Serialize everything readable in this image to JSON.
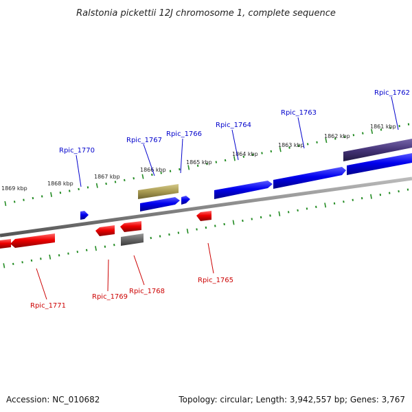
{
  "title": "Ralstonia pickettii 12J chromosome 1, complete sequence",
  "footer": {
    "accession": "Accession: NC_010682",
    "summary": "Topology: circular; Length: 3,942,557 bp; Genes: 3,767"
  },
  "kbp_labels": [
    "1869 kbp",
    "1868 kbp",
    "1867 kbp",
    "1866 kbp",
    "1865 kbp",
    "1864 kbp",
    "1863 kbp",
    "1862 kbp",
    "1861 kbp"
  ],
  "genes": [
    {
      "id": "Rpic_1762",
      "strand": "+",
      "color": "#0000ee"
    },
    {
      "id": "Rpic_1763",
      "strand": "+",
      "color": "#0000ee"
    },
    {
      "id": "Rpic_1764",
      "strand": "+",
      "color": "#0000ee"
    },
    {
      "id": "Rpic_1765",
      "strand": "-",
      "color": "#ee0000"
    },
    {
      "id": "Rpic_1766",
      "strand": "+",
      "color": "#0000ee"
    },
    {
      "id": "Rpic_1767",
      "strand": "+",
      "color": "#0000ee"
    },
    {
      "id": "Rpic_1768",
      "strand": "-",
      "color": "#666666"
    },
    {
      "id": "Rpic_1769",
      "strand": "-",
      "color": "#ee0000"
    },
    {
      "id": "Rpic_1770",
      "strand": "+",
      "color": "#0000ee"
    },
    {
      "id": "Rpic_1771",
      "strand": "-",
      "color": "#ee0000"
    }
  ],
  "colors": {
    "forward_cds": "#0000ee",
    "reverse_cds": "#ee0000",
    "ruler": "#228b22",
    "backbone": "#808080",
    "rna_forward": "#443377",
    "rna_olive": "#a89a50",
    "rna_reverse": "#666666"
  }
}
